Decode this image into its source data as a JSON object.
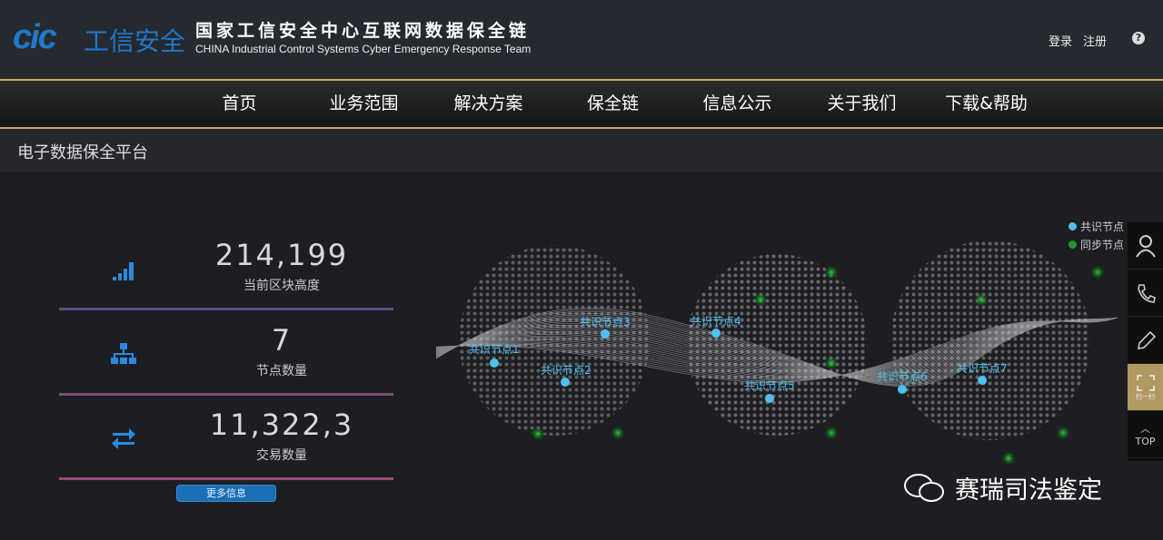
{
  "header": {
    "logo": "cic",
    "logo_cn": "工信安全",
    "title_cn": "国家工信安全中心互联网数据保全链",
    "title_en": "CHINA Industrial Control Systems Cyber Emergency Response Team",
    "login": "登录",
    "register": "注册",
    "help_icon": "?"
  },
  "nav": [
    {
      "label": "首页"
    },
    {
      "label": "业务范围"
    },
    {
      "label": "解决方案"
    },
    {
      "label": "保全链"
    },
    {
      "label": "信息公示"
    },
    {
      "label": "关于我们"
    },
    {
      "label": "下载&帮助"
    }
  ],
  "subtitle": "电子数据保全平台",
  "stats": [
    {
      "value": "214,199",
      "label": "当前区块高度",
      "icon": "signal-bars-icon",
      "line_color": "#5b4f86"
    },
    {
      "value": "7",
      "label": "节点数量",
      "icon": "sitemap-icon",
      "line_color": "#7d4d78"
    },
    {
      "value": "11,322,3",
      "label": "交易数量",
      "icon": "exchange-arrows-icon",
      "line_color": "#9a4a7a"
    }
  ],
  "more_button": "更多信息",
  "nodes": [
    "共识节点1",
    "共识节点2",
    "共识节点3",
    "共识节点4",
    "共识节点5",
    "共识节点6",
    "共识节点7"
  ],
  "legend": [
    {
      "label": "共识节点",
      "color": "#4fc0f0"
    },
    {
      "label": "同步节点",
      "color": "#1f9a2a"
    }
  ],
  "side_tools": [
    {
      "icon": "user-icon"
    },
    {
      "icon": "phone-icon"
    },
    {
      "icon": "pencil-icon"
    },
    {
      "icon": "qr-scan-icon",
      "label": "扫一扫"
    },
    {
      "icon": "chevron-up-icon",
      "label": "TOP"
    }
  ],
  "watermark": "赛瑞司法鉴定",
  "colors": {
    "accent": "#1f78c8",
    "nav_border": "#c8a95a",
    "consensus": "#4fc0f0",
    "sync": "#1f9a2a"
  }
}
